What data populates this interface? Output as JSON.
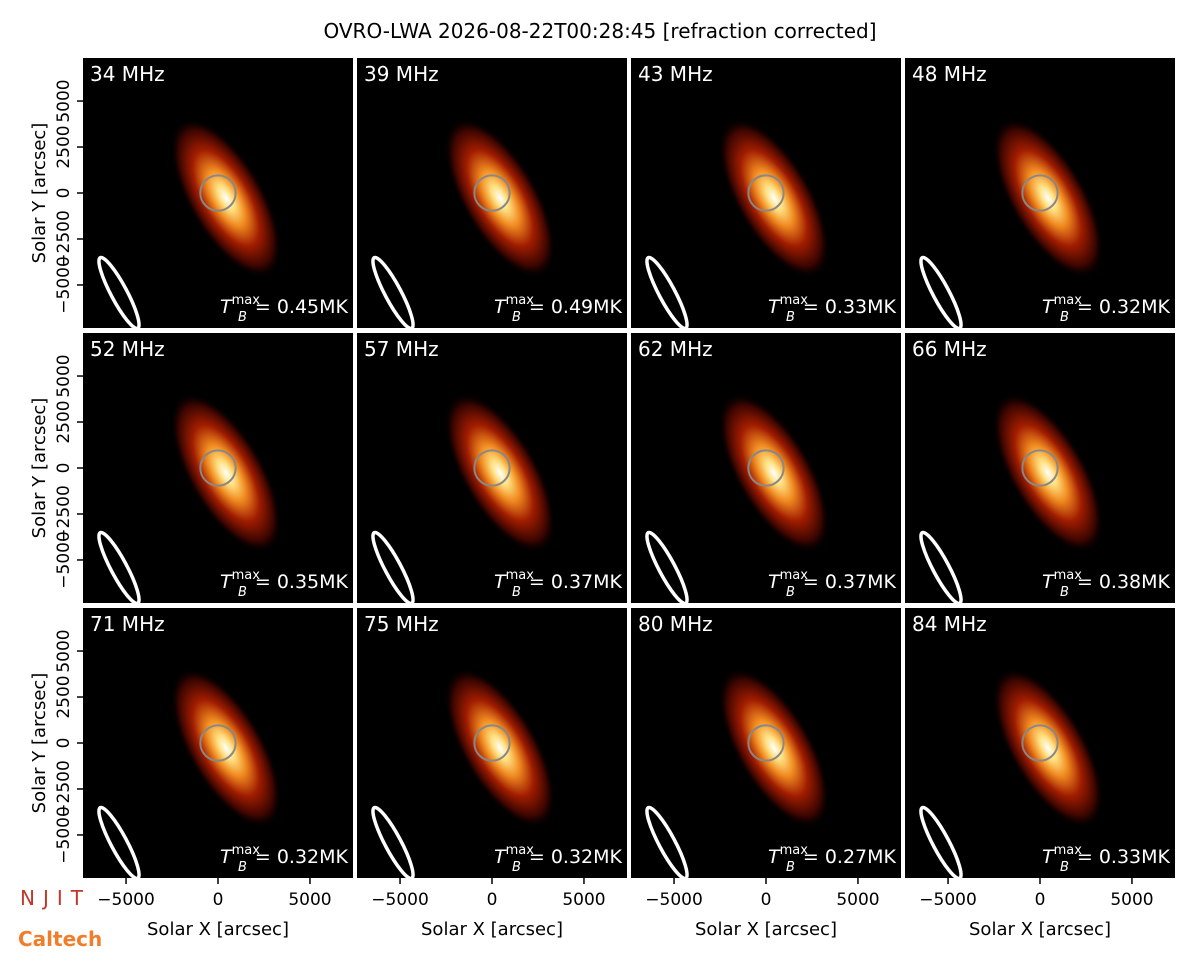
{
  "chart_data": {
    "type": "image_grid",
    "title": "OVRO-LWA 2026-08-22T00:28:45 [refraction corrected]",
    "xlabel": "Solar X [arcsec]",
    "ylabel": "Solar Y [arcsec]",
    "xlim": [
      -7340,
      7340
    ],
    "ylim": [
      -7340,
      7340
    ],
    "xticks": [
      {
        "value": -5000,
        "label": "−5000"
      },
      0,
      5000
    ],
    "yticks": [
      {
        "value": -5000,
        "label": "−5000"
      },
      {
        "value": -2500,
        "label": "−2500"
      },
      0,
      2500,
      5000
    ],
    "solar_disk_radius": 960,
    "tb_symbol": {
      "base": "T",
      "sub": "B",
      "sup": "max"
    },
    "panels": [
      {
        "label": "34 MHz",
        "tb_label": "= 0.45MK"
      },
      {
        "label": "39 MHz",
        "tb_label": "= 0.49MK"
      },
      {
        "label": "43 MHz",
        "tb_label": "= 0.33MK"
      },
      {
        "label": "48 MHz",
        "tb_label": "= 0.32MK"
      },
      {
        "label": "52 MHz",
        "tb_label": "= 0.35MK"
      },
      {
        "label": "57 MHz",
        "tb_label": "= 0.37MK"
      },
      {
        "label": "62 MHz",
        "tb_label": "= 0.37MK"
      },
      {
        "label": "66 MHz",
        "tb_label": "= 0.38MK"
      },
      {
        "label": "71 MHz",
        "tb_label": "= 0.32MK"
      },
      {
        "label": "75 MHz",
        "tb_label": "= 0.32MK"
      },
      {
        "label": "80 MHz",
        "tb_label": "= 0.27MK"
      },
      {
        "label": "84 MHz",
        "tb_label": "= 0.33MK"
      }
    ]
  },
  "logos": [
    "NJIT",
    "Caltech"
  ]
}
